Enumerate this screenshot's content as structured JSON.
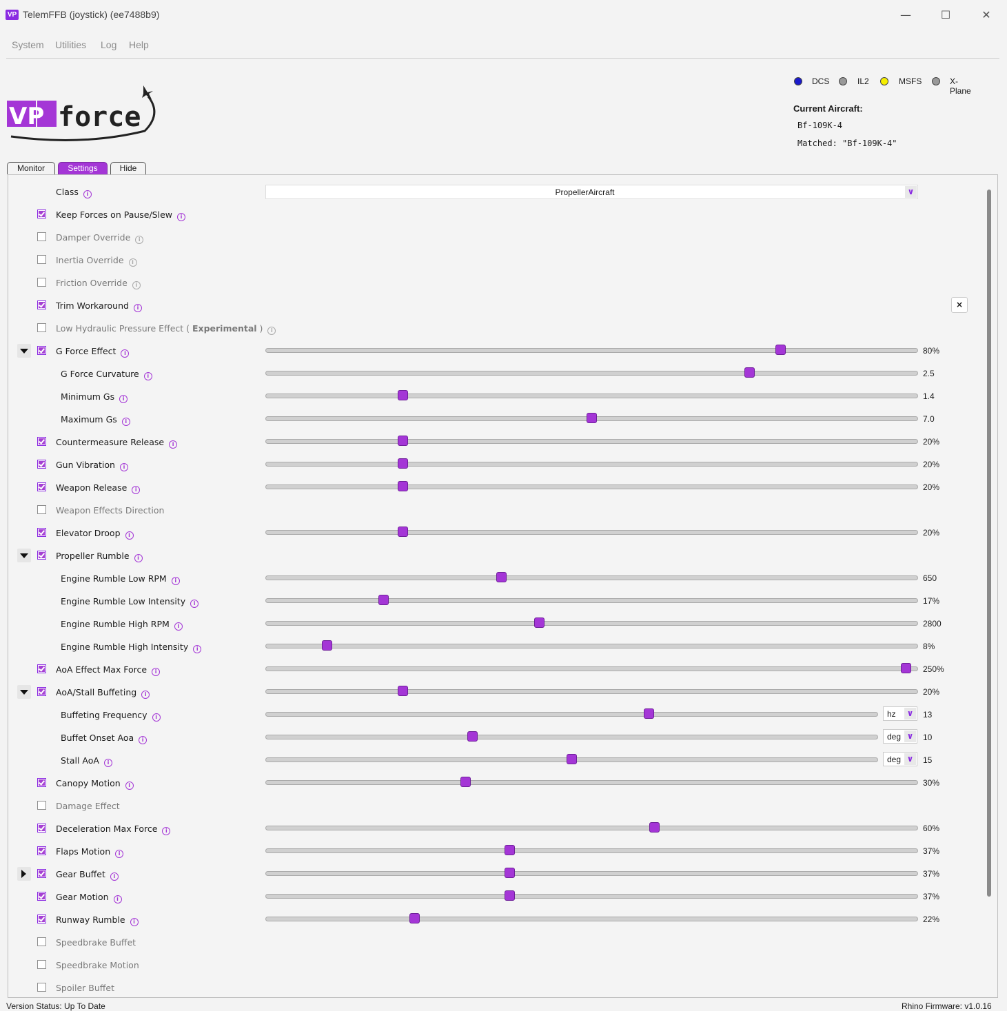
{
  "window": {
    "title": "TelemFFB (joystick) (ee7488b9)",
    "icon_text": "VP"
  },
  "menu": [
    "System",
    "Utilities",
    "Log",
    "Help"
  ],
  "logo": {
    "text": "VPforce"
  },
  "sims": [
    {
      "label": "DCS",
      "status": "active",
      "color": "#1a1acc"
    },
    {
      "label": "IL2",
      "status": "inactive",
      "color": "#888888"
    },
    {
      "label": "MSFS",
      "status": "idle",
      "color": "#f5ee00"
    },
    {
      "label": "X-Plane",
      "status": "inactive",
      "color": "#888888"
    }
  ],
  "aircraft": {
    "title": "Current Aircraft:",
    "name": "Bf-109K-4",
    "matched": "Matched: \"Bf-109K-4\""
  },
  "tabs": [
    "Monitor",
    "Settings",
    "Hide"
  ],
  "settings": {
    "class_label": "Class",
    "class_value": "PropellerAircraft",
    "close_label": "×",
    "rows": [
      {
        "label": "Keep Forces on Pause/Slew",
        "checked": true,
        "info": true
      },
      {
        "label": "Damper Override",
        "checked": false,
        "info": true,
        "dim": true
      },
      {
        "label": "Inertia Override",
        "checked": false,
        "info": true,
        "dim": true
      },
      {
        "label": "Friction Override",
        "checked": false,
        "info": true,
        "dim": true
      },
      {
        "label": "Trim Workaround",
        "checked": true,
        "info": true
      },
      {
        "label": "Low Hydraulic Pressure Effect ( ",
        "label_bold": "Experimental",
        "label_end": " )",
        "checked": false,
        "info": true,
        "dim": true
      },
      {
        "label": "G Force Effect",
        "checked": true,
        "info": true,
        "expander": "down",
        "slider": 0.795,
        "value": "80%"
      },
      {
        "label": "G Force Curvature",
        "sub": true,
        "info": true,
        "slider": 0.746,
        "value": "2.5"
      },
      {
        "label": "Minimum Gs",
        "sub": true,
        "info": true,
        "slider": 0.206,
        "value": "1.4"
      },
      {
        "label": "Maximum Gs",
        "sub": true,
        "info": true,
        "slider": 0.5,
        "value": "7.0"
      },
      {
        "label": "Countermeasure Release",
        "checked": true,
        "info": true,
        "slider": 0.206,
        "value": "20%"
      },
      {
        "label": "Gun Vibration",
        "checked": true,
        "info": true,
        "slider": 0.206,
        "value": "20%"
      },
      {
        "label": "Weapon Release",
        "checked": true,
        "info": true,
        "slider": 0.206,
        "value": "20%"
      },
      {
        "label": "Weapon Effects Direction",
        "checked": false,
        "dim": true
      },
      {
        "label": "Elevator Droop",
        "checked": true,
        "info": true,
        "slider": 0.206,
        "value": "20%"
      },
      {
        "label": "Propeller Rumble",
        "checked": true,
        "info": true,
        "expander": "down"
      },
      {
        "label": "Engine Rumble Low RPM",
        "sub": true,
        "info": true,
        "slider": 0.36,
        "value": "650"
      },
      {
        "label": "Engine Rumble Low Intensity",
        "sub": true,
        "info": true,
        "slider": 0.176,
        "value": "17%"
      },
      {
        "label": "Engine Rumble High RPM",
        "sub": true,
        "info": true,
        "slider": 0.419,
        "value": "2800"
      },
      {
        "label": "Engine Rumble High Intensity",
        "sub": true,
        "info": true,
        "slider": 0.088,
        "value": "8%"
      },
      {
        "label": "AoA Effect Max Force",
        "checked": true,
        "info": true,
        "slider": 0.99,
        "value": "250%"
      },
      {
        "label": "AoA/Stall Buffeting",
        "checked": true,
        "info": true,
        "expander": "down",
        "slider": 0.206,
        "value": "20%"
      },
      {
        "label": "Buffeting Frequency",
        "sub": true,
        "info": true,
        "slider": 0.629,
        "value": "13",
        "unit": "hz"
      },
      {
        "label": "Buffet Onset Aoa",
        "sub": true,
        "info": true,
        "slider": 0.336,
        "value": "10",
        "unit": "deg"
      },
      {
        "label": "Stall AoA",
        "sub": true,
        "info": true,
        "slider": 0.5,
        "value": "15",
        "unit": "deg"
      },
      {
        "label": "Canopy Motion",
        "checked": true,
        "info": true,
        "slider": 0.304,
        "value": "30%"
      },
      {
        "label": "Damage Effect",
        "checked": false,
        "dim": true
      },
      {
        "label": "Deceleration Max Force",
        "checked": true,
        "info": true,
        "slider": 0.598,
        "value": "60%"
      },
      {
        "label": "Flaps Motion",
        "checked": true,
        "info": true,
        "slider": 0.373,
        "value": "37%"
      },
      {
        "label": "Gear Buffet",
        "checked": true,
        "info": true,
        "expander": "right",
        "slider": 0.373,
        "value": "37%"
      },
      {
        "label": "Gear Motion",
        "checked": true,
        "info": true,
        "slider": 0.373,
        "value": "37%"
      },
      {
        "label": "Runway Rumble",
        "checked": true,
        "info": true,
        "slider": 0.225,
        "value": "22%"
      },
      {
        "label": "Speedbrake Buffet",
        "checked": false,
        "dim": true
      },
      {
        "label": "Speedbrake Motion",
        "checked": false,
        "dim": true
      },
      {
        "label": "Spoiler Buffet",
        "checked": false,
        "dim": true
      }
    ]
  },
  "status": {
    "left": "Version Status: Up To Date",
    "right": "Rhino Firmware: v1.0.16"
  },
  "colors": {
    "accent": "#a436d6"
  }
}
